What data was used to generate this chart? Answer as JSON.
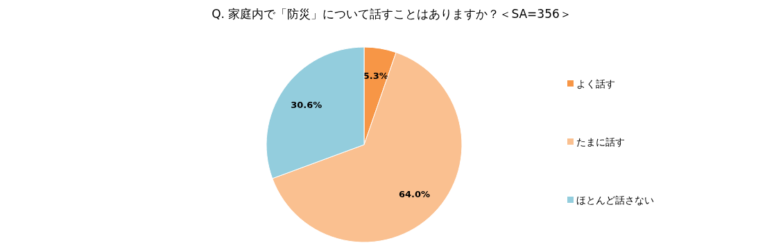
{
  "chart_data": {
    "type": "pie",
    "title": "Q. 家庭内で「防災」について話すことはありますか？＜SA=356＞",
    "categories": [
      "よく話す",
      "たまに話す",
      "ほとんど話さない"
    ],
    "values": [
      5.3,
      64.0,
      30.6
    ],
    "colors": [
      "#f79646",
      "#fac090",
      "#93cddd"
    ],
    "value_labels": [
      "5.3%",
      "64.0%",
      "30.6%"
    ],
    "legend": "right"
  }
}
